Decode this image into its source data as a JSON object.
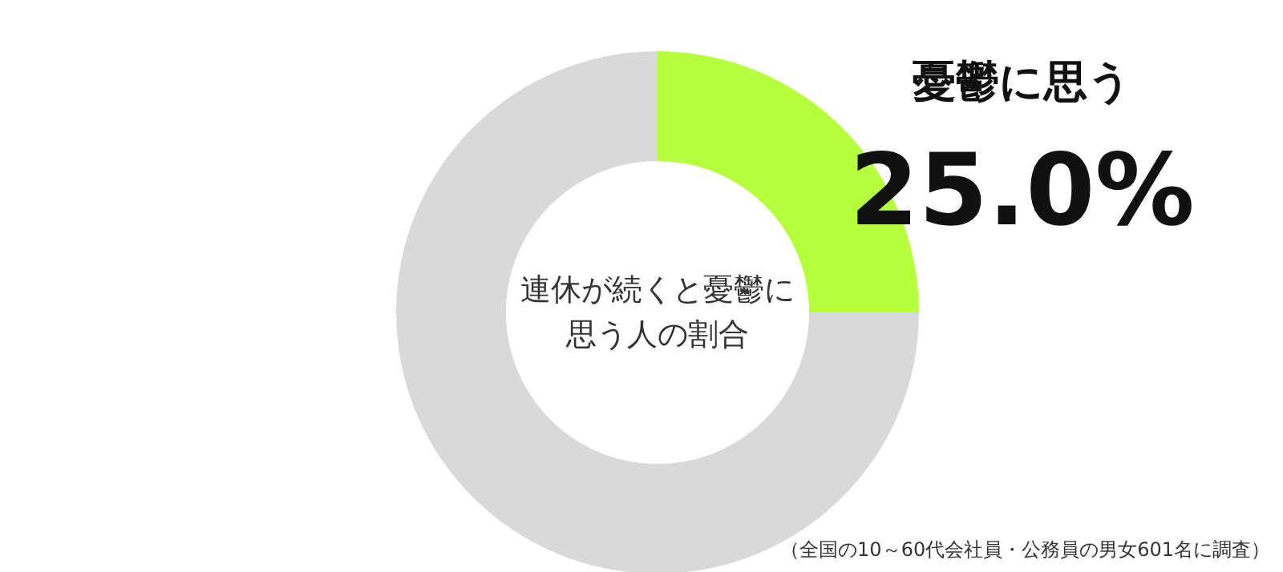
{
  "chart_data": {
    "type": "donut",
    "title": "連休が続くと憂鬱に思う人の割合",
    "categories": [
      "憂鬱に思う",
      null
    ],
    "values": [
      25.0,
      75.0
    ],
    "colors": [
      "#b5ff3c",
      "#d9d9d9"
    ],
    "value_labels": [
      "25.0%",
      null
    ],
    "annotations": [
      "（全国の10～60代会社員・公務員の男女601名に調査）"
    ]
  }
}
